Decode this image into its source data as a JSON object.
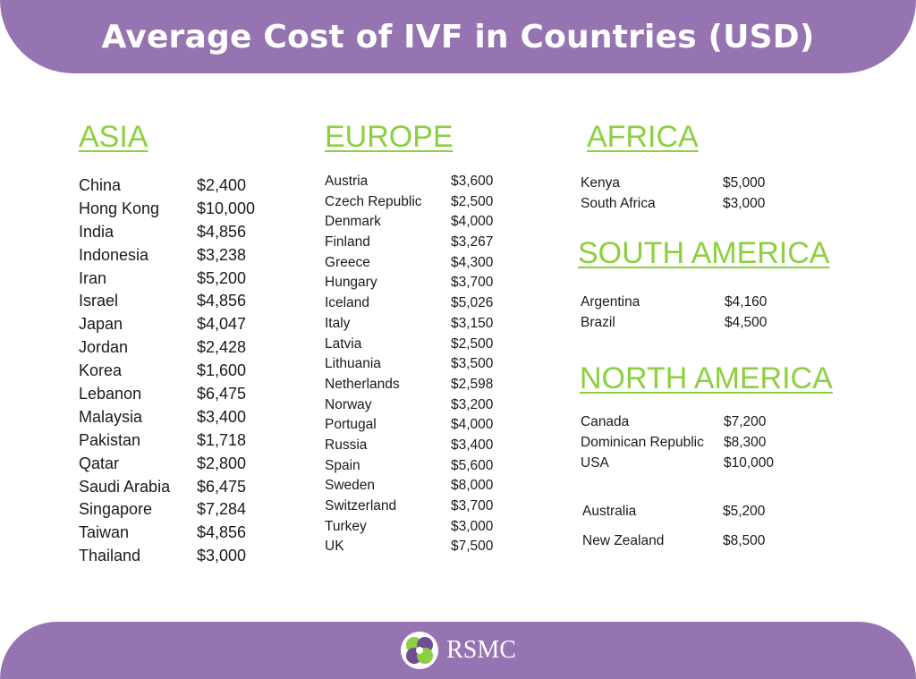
{
  "title": "Average Cost of IVF in Countries (USD)",
  "brand": {
    "logo_text": "RSMC",
    "colors": {
      "purple": "#9674b1",
      "green": "#8ccf3f"
    }
  },
  "asia": {
    "title": "ASIA",
    "rows": [
      {
        "country": "China",
        "cost": "$2,400"
      },
      {
        "country": "Hong Kong",
        "cost": "$10,000"
      },
      {
        "country": "India",
        "cost": "$4,856"
      },
      {
        "country": "Indonesia",
        "cost": "$3,238"
      },
      {
        "country": "Iran",
        "cost": "$5,200"
      },
      {
        "country": "Israel",
        "cost": "$4,856"
      },
      {
        "country": "Japan",
        "cost": "$4,047"
      },
      {
        "country": "Jordan",
        "cost": "$2,428"
      },
      {
        "country": "Korea",
        "cost": "$1,600"
      },
      {
        "country": "Lebanon",
        "cost": "$6,475"
      },
      {
        "country": "Malaysia",
        "cost": "$3,400"
      },
      {
        "country": "Pakistan",
        "cost": "$1,718"
      },
      {
        "country": "Qatar",
        "cost": "$2,800"
      },
      {
        "country": "Saudi Arabia",
        "cost": "$6,475"
      },
      {
        "country": "Singapore",
        "cost": "$7,284"
      },
      {
        "country": "Taiwan",
        "cost": "$4,856"
      },
      {
        "country": "Thailand",
        "cost": "$3,000"
      }
    ]
  },
  "europe": {
    "title": "EUROPE",
    "rows": [
      {
        "country": "Austria",
        "cost": "$3,600"
      },
      {
        "country": "Czech Republic",
        "cost": "$2,500"
      },
      {
        "country": "Denmark",
        "cost": "$4,000"
      },
      {
        "country": "Finland",
        "cost": "$3,267"
      },
      {
        "country": "Greece",
        "cost": "$4,300"
      },
      {
        "country": "Hungary",
        "cost": "$3,700"
      },
      {
        "country": "Iceland",
        "cost": "$5,026"
      },
      {
        "country": "Italy",
        "cost": "$3,150"
      },
      {
        "country": "Latvia",
        "cost": "$2,500"
      },
      {
        "country": "Lithuania",
        "cost": "$3,500"
      },
      {
        "country": "Netherlands",
        "cost": "$2,598"
      },
      {
        "country": "Norway",
        "cost": "$3,200"
      },
      {
        "country": "Portugal",
        "cost": "$4,000"
      },
      {
        "country": "Russia",
        "cost": "$3,400"
      },
      {
        "country": "Spain",
        "cost": "$5,600"
      },
      {
        "country": "Sweden",
        "cost": "$8,000"
      },
      {
        "country": "Switzerland",
        "cost": "$3,700"
      },
      {
        "country": "Turkey",
        "cost": "$3,000"
      },
      {
        "country": "UK",
        "cost": "$7,500"
      }
    ]
  },
  "africa": {
    "title": "AFRICA",
    "rows": [
      {
        "country": "Kenya",
        "cost": "$5,000"
      },
      {
        "country": "South Africa",
        "cost": "$3,000"
      }
    ]
  },
  "south_america": {
    "title": "SOUTH AMERICA",
    "rows": [
      {
        "country": "Argentina",
        "cost": "$4,160"
      },
      {
        "country": "Brazil",
        "cost": "$4,500"
      }
    ]
  },
  "north_america": {
    "title": "NORTH AMERICA",
    "rows": [
      {
        "country": "Canada",
        "cost": "$7,200"
      },
      {
        "country": "Dominican Republic",
        "cost": "$8,300"
      },
      {
        "country": "USA",
        "cost": "$10,000"
      }
    ]
  },
  "oceania": {
    "rows": [
      {
        "country": "Australia",
        "cost": "$5,200"
      },
      {
        "country": "New Zealand",
        "cost": "$8,500"
      }
    ]
  }
}
